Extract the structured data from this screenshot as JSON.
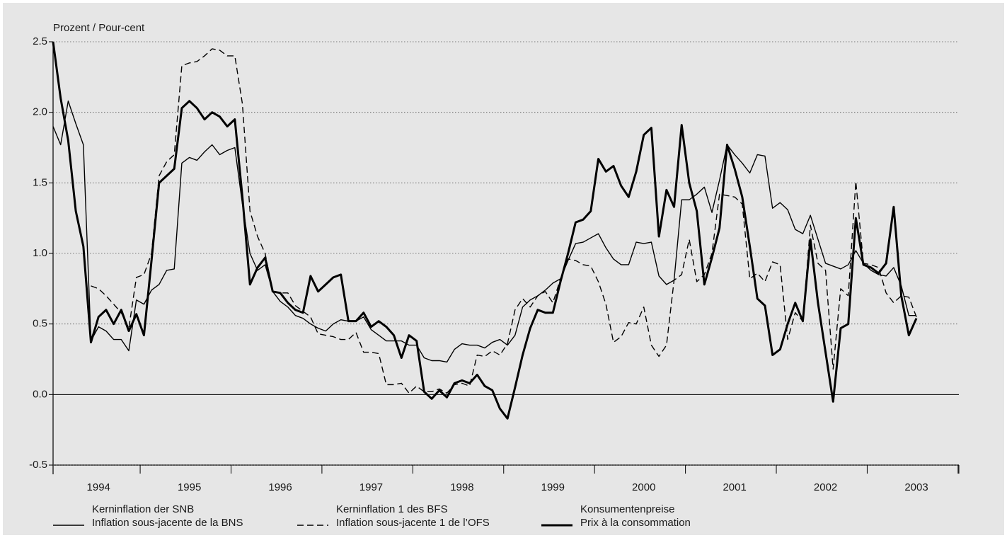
{
  "chart_data": {
    "type": "line",
    "ylabel": "Prozent / Pour-cent",
    "categories": [
      null,
      null,
      null,
      null,
      null,
      null,
      "1994",
      null,
      null,
      null,
      null,
      null,
      null,
      null,
      null,
      null,
      null,
      null,
      "1995",
      null,
      null,
      null,
      null,
      null,
      null,
      null,
      null,
      null,
      null,
      null,
      "1996",
      null,
      null,
      null,
      null,
      null,
      null,
      null,
      null,
      null,
      null,
      null,
      "1997",
      null,
      null,
      null,
      null,
      null,
      null,
      null,
      null,
      null,
      null,
      null,
      "1998",
      null,
      null,
      null,
      null,
      null,
      null,
      null,
      null,
      null,
      null,
      null,
      "1999",
      null,
      null,
      null,
      null,
      null,
      null,
      null,
      null,
      null,
      null,
      null,
      "2000",
      null,
      null,
      null,
      null,
      null,
      null,
      null,
      null,
      null,
      null,
      null,
      "2001",
      null,
      null,
      null,
      null,
      null,
      null,
      null,
      null,
      null,
      null,
      null,
      "2002",
      null,
      null,
      null,
      null,
      null,
      null,
      null,
      null,
      null,
      null,
      null,
      "2003"
    ],
    "series": [
      {
        "name": [
          "Kerninflation der SNB",
          "Inflation sous-jacente de la BNS"
        ],
        "color": "#000000",
        "line_style": "solid",
        "line_width": "thin",
        "values": [
          1.9,
          1.77,
          2.08,
          1.92,
          1.77,
          0.38,
          0.48,
          0.45,
          0.39,
          0.39,
          0.31,
          0.67,
          0.64,
          0.74,
          0.78,
          0.88,
          0.89,
          1.64,
          1.68,
          1.66,
          1.72,
          1.77,
          1.7,
          1.73,
          1.75,
          1.35,
          1.0,
          0.88,
          0.92,
          0.73,
          0.66,
          0.62,
          0.56,
          0.54,
          0.5,
          0.47,
          0.45,
          0.5,
          0.53,
          0.52,
          0.52,
          0.55,
          0.46,
          0.42,
          0.38,
          0.38,
          0.38,
          0.35,
          0.35,
          0.26,
          0.24,
          0.24,
          0.23,
          0.32,
          0.36,
          0.35,
          0.35,
          0.33,
          0.37,
          0.39,
          0.35,
          0.42,
          0.62,
          0.67,
          0.7,
          0.74,
          0.79,
          0.82,
          0.95,
          1.07,
          1.08,
          1.11,
          1.14,
          1.04,
          0.96,
          0.92,
          0.92,
          1.08,
          1.07,
          1.08,
          0.84,
          0.78,
          0.81,
          1.38,
          1.38,
          1.42,
          1.47,
          1.29,
          1.52,
          1.77,
          1.7,
          1.64,
          1.57,
          1.7,
          1.69,
          1.32,
          1.36,
          1.31,
          1.17,
          1.14,
          1.27,
          1.1,
          0.93,
          0.91,
          0.89,
          0.92,
          1.02,
          0.93,
          0.88,
          0.85,
          0.84,
          0.9,
          0.77,
          0.56,
          0.56
        ]
      },
      {
        "name": [
          "Kerninflation 1 des BFS",
          "Inflation sous-jacente 1 de l’OFS"
        ],
        "color": "#000000",
        "line_style": "dashed",
        "line_width": "thin",
        "values": [
          null,
          null,
          null,
          null,
          null,
          0.77,
          0.75,
          0.7,
          0.64,
          0.58,
          0.47,
          0.83,
          0.85,
          1.0,
          1.55,
          1.65,
          1.7,
          2.33,
          2.35,
          2.36,
          2.4,
          2.45,
          2.44,
          2.4,
          2.4,
          2.06,
          1.3,
          1.12,
          1.0,
          0.73,
          0.72,
          0.72,
          0.63,
          0.59,
          0.55,
          0.43,
          0.42,
          0.41,
          0.39,
          0.39,
          0.44,
          0.3,
          0.3,
          0.29,
          0.07,
          0.07,
          0.08,
          0.01,
          0.06,
          0.02,
          0.02,
          0.04,
          0.01,
          0.07,
          0.08,
          0.06,
          0.28,
          0.27,
          0.31,
          0.28,
          0.36,
          0.6,
          0.68,
          0.62,
          0.7,
          0.73,
          0.65,
          0.82,
          0.96,
          0.95,
          0.92,
          0.91,
          0.8,
          0.64,
          0.37,
          0.41,
          0.51,
          0.5,
          0.62,
          0.35,
          0.27,
          0.35,
          0.81,
          0.85,
          1.1,
          0.8,
          0.85,
          1.0,
          1.42,
          1.41,
          1.4,
          1.35,
          0.82,
          0.86,
          0.8,
          0.94,
          0.92,
          0.39,
          0.58,
          0.52,
          1.2,
          0.93,
          0.88,
          0.18,
          0.75,
          0.7,
          1.51,
          0.93,
          0.92,
          0.9,
          0.72,
          0.65,
          0.7,
          0.69,
          0.55
        ]
      },
      {
        "name": [
          "Konsumentenpreise",
          "Prix à la consommation"
        ],
        "color": "#000000",
        "line_style": "solid",
        "line_width": "thick",
        "values": [
          2.5,
          2.1,
          1.8,
          1.3,
          1.05,
          0.37,
          0.55,
          0.6,
          0.5,
          0.6,
          0.45,
          0.57,
          0.42,
          0.95,
          1.5,
          1.55,
          1.6,
          2.03,
          2.08,
          2.03,
          1.95,
          2.0,
          1.97,
          1.9,
          1.95,
          1.4,
          0.78,
          0.9,
          0.97,
          0.73,
          0.72,
          0.65,
          0.6,
          0.58,
          0.84,
          0.73,
          0.78,
          0.83,
          0.85,
          0.52,
          0.52,
          0.58,
          0.48,
          0.52,
          0.48,
          0.42,
          0.26,
          0.42,
          0.38,
          0.02,
          -0.03,
          0.03,
          -0.02,
          0.08,
          0.1,
          0.08,
          0.14,
          0.06,
          0.03,
          -0.1,
          -0.17,
          0.05,
          0.28,
          0.47,
          0.6,
          0.58,
          0.58,
          0.8,
          1.0,
          1.22,
          1.24,
          1.3,
          1.67,
          1.58,
          1.62,
          1.48,
          1.4,
          1.58,
          1.84,
          1.89,
          1.12,
          1.45,
          1.33,
          1.91,
          1.5,
          1.3,
          0.78,
          0.97,
          1.18,
          1.77,
          1.6,
          1.4,
          1.05,
          0.68,
          0.63,
          0.28,
          0.32,
          0.5,
          0.65,
          0.52,
          1.1,
          0.65,
          0.3,
          -0.05,
          0.47,
          0.5,
          1.25,
          0.92,
          0.9,
          0.86,
          0.93,
          1.33,
          0.7,
          0.42,
          0.54
        ]
      }
    ],
    "ylim": [
      -0.5,
      2.5
    ],
    "yticks": [
      -0.5,
      {
        "value": 0,
        "label": "0.0"
      },
      0.5,
      {
        "value": 1,
        "label": "1.0"
      },
      1.5,
      {
        "value": 2,
        "label": "2.0"
      },
      2.5
    ],
    "grid": true
  }
}
